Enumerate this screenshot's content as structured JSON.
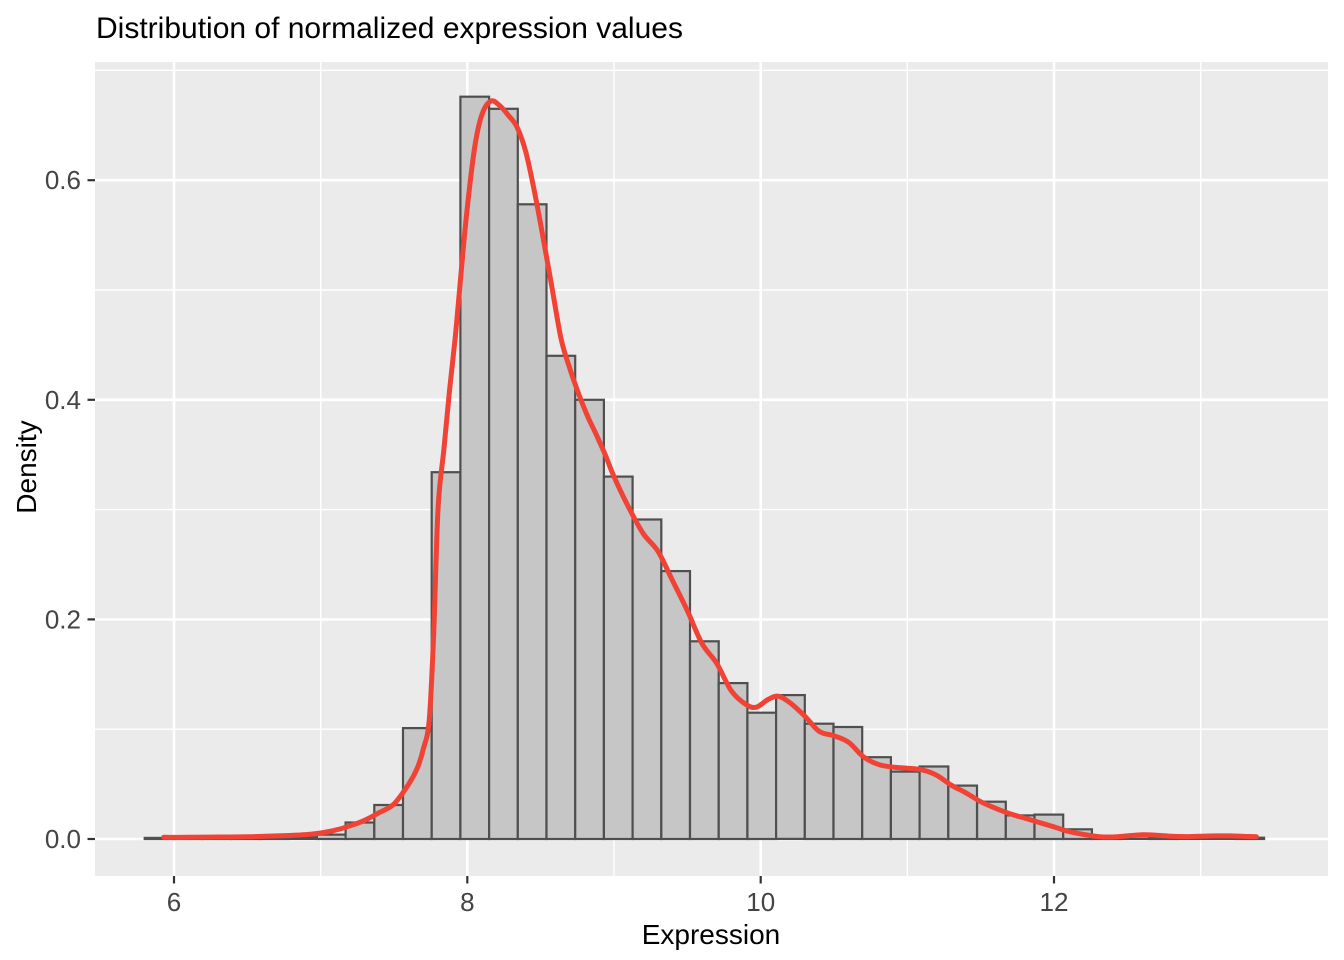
{
  "title": "Distribution of normalized expression values",
  "chart_data": {
    "type": "histogram+density",
    "title": "Distribution of normalized expression values",
    "xlabel": "Expression",
    "ylabel": "Density",
    "legend": "none",
    "grid": "on",
    "x_ticks": {
      "values": [
        6,
        8,
        10,
        12
      ],
      "labels": [
        "6",
        "8",
        "10",
        "12"
      ]
    },
    "x_minor_ticks": [
      7,
      9,
      11,
      13
    ],
    "y_ticks": {
      "values": [
        0.0,
        0.2,
        0.4,
        0.6
      ],
      "labels": [
        "0.0",
        "0.2",
        "0.4",
        "0.6"
      ]
    },
    "y_minor_ticks": [
      0.1,
      0.3,
      0.5,
      0.7
    ],
    "x_domain": [
      5.4614,
      13.8681
    ],
    "y_domain": [
      -0.0337,
      0.7076
    ],
    "histogram": {
      "bin_start": 5.8,
      "bin_width": 0.1957,
      "heights": [
        0.001,
        0.0008,
        0.0008,
        0.001,
        0.0012,
        0.0015,
        0.004,
        0.015,
        0.031,
        0.101,
        0.334,
        0.676,
        0.665,
        0.578,
        0.44,
        0.4,
        0.33,
        0.291,
        0.244,
        0.18,
        0.142,
        0.115,
        0.131,
        0.105,
        0.102,
        0.0745,
        0.0614,
        0.066,
        0.0486,
        0.034,
        0.0215,
        0.0222,
        0.0088,
        0.002,
        0.0025,
        0.002,
        0.0015,
        0.0015,
        0.0012
      ]
    },
    "density_curve": {
      "x": [
        5.93,
        6.1,
        6.3,
        6.5,
        6.7,
        6.9,
        7.0,
        7.1,
        7.2,
        7.3,
        7.4,
        7.5,
        7.6,
        7.66,
        7.7,
        7.74,
        7.77,
        7.8,
        7.84,
        7.88,
        7.92,
        7.96,
        8.0,
        8.05,
        8.1,
        8.16,
        8.22,
        8.28,
        8.34,
        8.4,
        8.46,
        8.52,
        8.58,
        8.64,
        8.7,
        8.76,
        8.82,
        8.88,
        8.94,
        9.0,
        9.1,
        9.2,
        9.3,
        9.4,
        9.5,
        9.6,
        9.7,
        9.8,
        9.9,
        9.97,
        10.05,
        10.12,
        10.2,
        10.3,
        10.4,
        10.5,
        10.6,
        10.7,
        10.8,
        10.9,
        11.0,
        11.1,
        11.2,
        11.3,
        11.4,
        11.5,
        11.6,
        11.7,
        11.8,
        11.9,
        12.0,
        12.1,
        12.2,
        12.3,
        12.4,
        12.5,
        12.6,
        12.7,
        12.8,
        12.9,
        13.0,
        13.1,
        13.2,
        13.3,
        13.38
      ],
      "y": [
        0.0015,
        0.0015,
        0.0018,
        0.002,
        0.0028,
        0.004,
        0.0055,
        0.008,
        0.012,
        0.017,
        0.024,
        0.032,
        0.05,
        0.065,
        0.082,
        0.108,
        0.185,
        0.3,
        0.355,
        0.41,
        0.46,
        0.52,
        0.575,
        0.63,
        0.66,
        0.672,
        0.668,
        0.659,
        0.648,
        0.625,
        0.588,
        0.545,
        0.5,
        0.455,
        0.428,
        0.405,
        0.385,
        0.368,
        0.35,
        0.33,
        0.302,
        0.278,
        0.262,
        0.235,
        0.208,
        0.178,
        0.16,
        0.135,
        0.1225,
        0.12,
        0.127,
        0.13,
        0.124,
        0.112,
        0.098,
        0.094,
        0.088,
        0.075,
        0.068,
        0.0655,
        0.0645,
        0.063,
        0.058,
        0.049,
        0.042,
        0.034,
        0.028,
        0.023,
        0.019,
        0.015,
        0.011,
        0.0068,
        0.0042,
        0.0022,
        0.0018,
        0.0028,
        0.0038,
        0.0035,
        0.0025,
        0.0022,
        0.0025,
        0.0028,
        0.0028,
        0.0024,
        0.002
      ]
    },
    "colors": {
      "panel_bg": "#EBEBEB",
      "grid": "#FFFFFF",
      "bar_fill": "#C6C6C6",
      "bar_stroke": "#4F4F4F",
      "curve": "#F04335",
      "tick_mark": "#333333",
      "tick_label": "#444444",
      "axis_title": "#000000",
      "title": "#000000"
    }
  }
}
